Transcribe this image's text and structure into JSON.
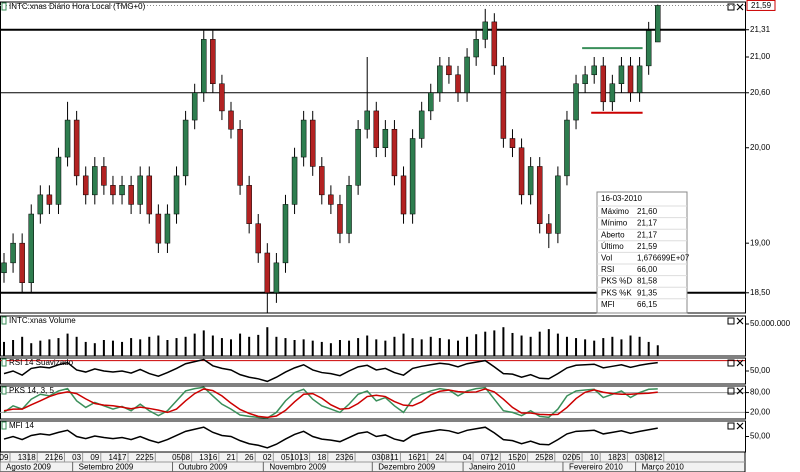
{
  "chart_data": [
    {
      "type": "candlestick",
      "title": "INTC:xnas Diário Hora Local (TMG+0)",
      "log": true,
      "ylim": [
        18.3,
        21.63
      ],
      "yticks": [
        {
          "value": 21.31,
          "label": "21,31"
        },
        {
          "value": 21.0,
          "label": "21,00"
        },
        {
          "value": 20.6,
          "label": "20,60"
        },
        {
          "value": 20.0,
          "label": "20,00"
        },
        {
          "value": 19.0,
          "label": "19,00"
        },
        {
          "value": 18.5,
          "label": "18,50"
        }
      ],
      "hlines": [
        {
          "value": 21.31,
          "width": 2
        },
        {
          "value": 20.6,
          "width": 1
        },
        {
          "value": 18.5,
          "width": 2
        }
      ],
      "last_price": {
        "value": 21.59,
        "label": "21,59",
        "color": "#cc0000"
      },
      "trendlines": [
        {
          "value": 21.1,
          "color": "#3a8f5a",
          "from": 64,
          "to": 70
        },
        {
          "value": 20.38,
          "color": "#cc0000",
          "from": 65,
          "to": 70
        }
      ],
      "up_color": "#2e7d4f",
      "down_color": "#b22222",
      "categories": [
        "09",
        null,
        "13",
        "18",
        null,
        "21",
        "26",
        null,
        "03",
        null,
        "09",
        null,
        "14",
        "17",
        null,
        "22",
        "25",
        null,
        null,
        "05",
        "08",
        null,
        "13",
        "16",
        null,
        "21",
        null,
        "26",
        null,
        "02",
        null,
        "05",
        "10",
        "13",
        null,
        "18",
        null,
        "23",
        "26",
        null,
        null,
        "03",
        "08",
        "11",
        null,
        "16",
        "21",
        null,
        "24",
        null,
        null,
        "04",
        null,
        "07",
        "12",
        null,
        "15",
        "20",
        null,
        "25",
        "28",
        null,
        "02",
        "05",
        null,
        "10",
        null,
        "18",
        "23",
        null,
        "03",
        "08",
        "12"
      ],
      "months": [
        {
          "name": "Agosto 2009",
          "first": 0
        },
        {
          "name": "Setembro 2009",
          "first": 8
        },
        {
          "name": "Outubro 2009",
          "first": 19
        },
        {
          "name": "Novembro 2009",
          "first": 29
        },
        {
          "name": "Dezembro 2009",
          "first": 41
        },
        {
          "name": "Janeiro 2010",
          "first": 51
        },
        {
          "name": "Fevereiro 2010",
          "first": 62
        },
        {
          "name": "Março 2010",
          "first": 70
        }
      ],
      "open": [
        18.7,
        18.8,
        19.0,
        18.6,
        19.3,
        19.5,
        19.4,
        19.9,
        20.3,
        19.7,
        19.5,
        19.8,
        19.6,
        19.5,
        19.6,
        19.4,
        19.7,
        19.3,
        19.0,
        19.3,
        19.7,
        20.3,
        20.6,
        21.2,
        20.7,
        20.4,
        20.2,
        19.6,
        19.2,
        18.9,
        18.5,
        18.8,
        19.4,
        19.9,
        20.3,
        19.8,
        19.5,
        19.4,
        19.1,
        19.6,
        20.2,
        20.4,
        20.0,
        20.2,
        19.7,
        19.3,
        20.1,
        20.4,
        20.6,
        20.9,
        20.8,
        20.6,
        21.0,
        21.2,
        21.4,
        20.9,
        20.1,
        20.0,
        19.5,
        19.8,
        19.2,
        19.1,
        19.7,
        20.3,
        20.7,
        20.8,
        20.9,
        20.5,
        20.7,
        20.9,
        20.6,
        20.9,
        21.17
      ],
      "high": [
        18.9,
        19.1,
        19.1,
        19.4,
        19.6,
        19.6,
        20.0,
        20.5,
        20.4,
        19.8,
        19.9,
        19.9,
        19.7,
        19.7,
        19.7,
        19.8,
        19.8,
        19.4,
        19.4,
        19.8,
        20.4,
        20.7,
        21.3,
        21.3,
        20.8,
        20.5,
        20.3,
        19.7,
        19.3,
        19.0,
        18.9,
        19.5,
        20.0,
        20.4,
        20.4,
        19.9,
        19.6,
        19.5,
        19.7,
        20.3,
        21.0,
        20.5,
        20.3,
        20.3,
        19.8,
        20.2,
        20.5,
        20.7,
        21.0,
        21.0,
        20.9,
        21.1,
        21.3,
        21.55,
        21.5,
        21.0,
        20.2,
        20.1,
        19.9,
        19.9,
        19.3,
        19.8,
        20.4,
        20.8,
        20.9,
        21.0,
        21.0,
        20.8,
        21.0,
        21.0,
        21.0,
        21.4,
        21.6
      ],
      "low": [
        18.6,
        18.7,
        18.5,
        18.5,
        19.2,
        19.3,
        19.3,
        19.8,
        19.6,
        19.4,
        19.4,
        19.5,
        19.4,
        19.4,
        19.3,
        19.3,
        19.2,
        18.9,
        18.9,
        19.2,
        19.6,
        20.2,
        20.5,
        20.6,
        20.3,
        20.1,
        19.5,
        19.1,
        18.8,
        18.3,
        18.4,
        18.7,
        19.3,
        19.8,
        19.7,
        19.4,
        19.3,
        19.0,
        19.0,
        19.5,
        20.1,
        19.9,
        19.9,
        19.6,
        19.2,
        19.2,
        20.0,
        20.3,
        20.5,
        20.7,
        20.5,
        20.5,
        20.9,
        21.1,
        20.8,
        20.0,
        19.9,
        19.4,
        19.4,
        19.1,
        18.95,
        19.0,
        19.6,
        20.2,
        20.6,
        20.7,
        20.4,
        20.4,
        20.6,
        20.5,
        20.5,
        20.8,
        21.17
      ],
      "close": [
        18.8,
        19.0,
        18.6,
        19.3,
        19.5,
        19.4,
        19.9,
        20.3,
        19.7,
        19.5,
        19.8,
        19.6,
        19.5,
        19.6,
        19.4,
        19.7,
        19.3,
        19.0,
        19.3,
        19.7,
        20.3,
        20.6,
        21.2,
        20.7,
        20.4,
        20.2,
        19.6,
        19.2,
        18.9,
        18.5,
        18.8,
        19.4,
        19.9,
        20.3,
        19.8,
        19.5,
        19.4,
        19.1,
        19.6,
        20.2,
        20.4,
        20.0,
        20.2,
        19.7,
        19.3,
        20.1,
        20.4,
        20.6,
        20.9,
        20.8,
        20.6,
        21.0,
        21.2,
        21.4,
        20.9,
        20.1,
        20.0,
        19.5,
        19.8,
        19.2,
        19.1,
        19.7,
        20.3,
        20.7,
        20.8,
        20.9,
        20.5,
        20.7,
        20.9,
        20.6,
        20.9,
        21.3,
        21.59
      ],
      "info": {
        "date": "16-03-2010",
        "rows": [
          {
            "label": "Máximo",
            "value": "21,60"
          },
          {
            "label": "Mínimo",
            "value": "21,17"
          },
          {
            "label": "Aberto",
            "value": "21,17"
          },
          {
            "label": "Último",
            "value": "21,59",
            "value_color": "#cc0000"
          },
          {
            "label": "Vol",
            "value": "1,676699E+07"
          },
          {
            "label": "RSI",
            "value": "66,00"
          },
          {
            "label": "PKS %D",
            "value": "81,58",
            "color": "#cc0000",
            "value_color": "#cc0000"
          },
          {
            "label": "PKS %K",
            "value": "91,35",
            "color": "#3a8f5a",
            "value_color": "#3a8f5a"
          },
          {
            "label": "MFI",
            "value": "66,15"
          }
        ]
      }
    },
    {
      "type": "bar",
      "title": "INTC:xnas Volume",
      "color": "#000000",
      "ylim": [
        0,
        62500000
      ],
      "yticks": [
        {
          "value": 50000000,
          "label": "50.000.000"
        }
      ],
      "values": [
        22000000,
        25000000,
        30000000,
        20000000,
        24000000,
        26000000,
        28000000,
        35000000,
        30000000,
        22000000,
        20000000,
        25000000,
        24000000,
        22000000,
        28000000,
        26000000,
        30000000,
        32000000,
        25000000,
        28000000,
        30000000,
        35000000,
        40000000,
        32000000,
        28000000,
        26000000,
        35000000,
        30000000,
        33000000,
        45000000,
        30000000,
        28000000,
        25000000,
        26000000,
        24000000,
        22000000,
        20000000,
        25000000,
        24000000,
        28000000,
        32000000,
        26000000,
        24000000,
        30000000,
        35000000,
        28000000,
        26000000,
        30000000,
        28000000,
        26000000,
        24000000,
        30000000,
        34000000,
        38000000,
        40000000,
        45000000,
        36000000,
        32000000,
        30000000,
        38000000,
        42000000,
        35000000,
        30000000,
        28000000,
        26000000,
        24000000,
        28000000,
        30000000,
        26000000,
        32000000,
        30000000,
        22000000,
        16766990
      ]
    },
    {
      "type": "line",
      "title": "RSI 14 Suavizado",
      "color": "#000000",
      "ylim": [
        25,
        75
      ],
      "yticks": [
        {
          "value": 50,
          "label": "50,00"
        }
      ],
      "levels": [
        70
      ],
      "level_color": "#cc0000",
      "values": [
        45,
        50,
        42,
        55,
        58,
        56,
        62,
        66,
        52,
        48,
        54,
        50,
        48,
        50,
        46,
        53,
        45,
        40,
        47,
        55,
        64,
        68,
        72,
        60,
        55,
        52,
        43,
        38,
        35,
        30,
        38,
        48,
        56,
        62,
        52,
        47,
        45,
        41,
        50,
        58,
        61,
        52,
        55,
        47,
        42,
        55,
        59,
        62,
        65,
        63,
        58,
        64,
        67,
        70,
        58,
        45,
        44,
        38,
        43,
        36,
        35,
        45,
        56,
        61,
        62,
        63,
        56,
        59,
        62,
        57,
        61,
        64,
        66
      ]
    },
    {
      "type": "line",
      "title": "PKS 14, 3, 5",
      "ylim": [
        0,
        100
      ],
      "yticks": [
        {
          "value": 80,
          "label": "80,00"
        },
        {
          "value": 20,
          "label": "20,00"
        }
      ],
      "levels": [
        80,
        20
      ],
      "level_color": "#999999",
      "series": [
        {
          "color": "#3a8f5a",
          "values": [
            20,
            40,
            30,
            60,
            75,
            70,
            85,
            92,
            55,
            35,
            50,
            40,
            30,
            38,
            25,
            45,
            25,
            10,
            25,
            55,
            85,
            92,
            96,
            70,
            45,
            30,
            12,
            8,
            5,
            3,
            20,
            55,
            80,
            90,
            60,
            40,
            30,
            20,
            45,
            75,
            85,
            55,
            65,
            40,
            20,
            60,
            75,
            85,
            92,
            88,
            70,
            85,
            92,
            95,
            60,
            25,
            20,
            10,
            25,
            8,
            5,
            30,
            70,
            85,
            88,
            90,
            65,
            75,
            85,
            65,
            80,
            90,
            91.35
          ]
        },
        {
          "color": "#cc0000",
          "values": [
            25,
            30,
            30,
            43,
            55,
            68,
            77,
            82,
            77,
            61,
            47,
            42,
            40,
            36,
            31,
            36,
            32,
            27,
            20,
            30,
            55,
            77,
            91,
            86,
            70,
            48,
            29,
            17,
            8,
            5,
            9,
            26,
            52,
            75,
            77,
            63,
            43,
            30,
            32,
            47,
            68,
            72,
            68,
            53,
            42,
            40,
            52,
            73,
            84,
            88,
            83,
            81,
            82,
            91,
            82,
            60,
            35,
            18,
            18,
            14,
            13,
            14,
            35,
            62,
            81,
            88,
            81,
            77,
            75,
            75,
            77,
            78,
            81.58
          ]
        }
      ]
    },
    {
      "type": "line",
      "title": "MFI 14",
      "color": "#000000",
      "ylim": [
        20,
        80
      ],
      "yticks": [
        {
          "value": 50,
          "label": "50,00"
        }
      ],
      "values": [
        45,
        50,
        44,
        52,
        55,
        53,
        58,
        62,
        50,
        46,
        51,
        48,
        46,
        48,
        44,
        50,
        43,
        38,
        44,
        52,
        60,
        64,
        68,
        58,
        52,
        50,
        42,
        36,
        33,
        28,
        35,
        45,
        54,
        60,
        50,
        45,
        43,
        40,
        48,
        56,
        59,
        50,
        53,
        45,
        41,
        52,
        57,
        60,
        63,
        61,
        56,
        62,
        65,
        68,
        57,
        44,
        42,
        36,
        41,
        35,
        34,
        44,
        55,
        60,
        61,
        62,
        55,
        58,
        61,
        56,
        60,
        63,
        66.15
      ]
    }
  ]
}
